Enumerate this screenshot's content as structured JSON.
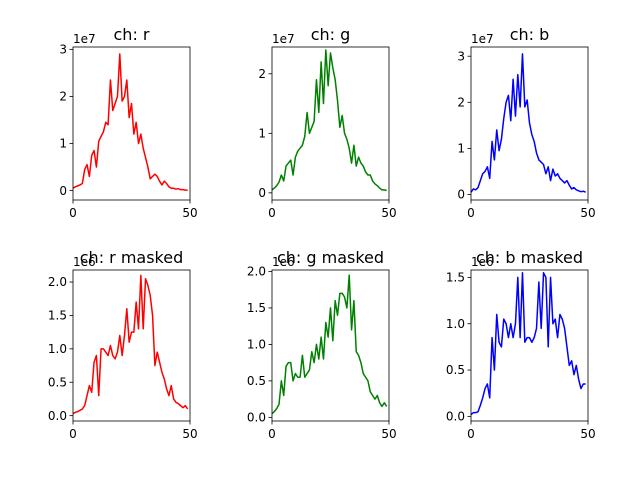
{
  "chart_data": [
    {
      "type": "line",
      "title": "ch: r",
      "color": "#ff0000",
      "offset_text": "1e7",
      "scale": 10000000,
      "xlim": [
        0,
        50
      ],
      "ylim": [
        -0.2,
        3.05
      ],
      "xticks": [
        0,
        50
      ],
      "yticks": [
        0,
        1,
        2,
        3
      ],
      "x": [
        0,
        1,
        2,
        3,
        4,
        5,
        6,
        7,
        8,
        9,
        10,
        11,
        12,
        13,
        14,
        15,
        16,
        17,
        18,
        19,
        20,
        21,
        22,
        23,
        24,
        25,
        26,
        27,
        28,
        29,
        30,
        31,
        32,
        33,
        34,
        35,
        36,
        37,
        38,
        39,
        40,
        41,
        42,
        43,
        44,
        45,
        46,
        47,
        48,
        49
      ],
      "values": [
        0.05,
        0.08,
        0.1,
        0.12,
        0.15,
        0.45,
        0.55,
        0.3,
        0.75,
        0.85,
        0.5,
        1.05,
        1.15,
        1.25,
        1.45,
        1.4,
        2.35,
        1.7,
        1.85,
        2.0,
        2.9,
        1.9,
        2.0,
        2.35,
        1.55,
        1.85,
        1.2,
        1.45,
        1.0,
        1.2,
        0.9,
        0.7,
        0.5,
        0.25,
        0.3,
        0.35,
        0.3,
        0.2,
        0.12,
        0.2,
        0.15,
        0.08,
        0.05,
        0.05,
        0.03,
        0.04,
        0.02,
        0.02,
        0.01,
        0.01
      ]
    },
    {
      "type": "line",
      "title": "ch: g",
      "color": "#008000",
      "offset_text": "1e7",
      "scale": 10000000,
      "xlim": [
        0,
        50
      ],
      "ylim": [
        -0.12,
        2.45
      ],
      "xticks": [
        0,
        50
      ],
      "yticks": [
        0,
        1,
        2
      ],
      "x": [
        0,
        1,
        2,
        3,
        4,
        5,
        6,
        7,
        8,
        9,
        10,
        11,
        12,
        13,
        14,
        15,
        16,
        17,
        18,
        19,
        20,
        21,
        22,
        23,
        24,
        25,
        26,
        27,
        28,
        29,
        30,
        31,
        32,
        33,
        34,
        35,
        36,
        37,
        38,
        39,
        40,
        41,
        42,
        43,
        44,
        45,
        46,
        47,
        48,
        49
      ],
      "values": [
        0.05,
        0.08,
        0.12,
        0.18,
        0.3,
        0.2,
        0.45,
        0.5,
        0.55,
        0.3,
        0.6,
        0.7,
        0.75,
        0.8,
        0.95,
        1.35,
        1.0,
        1.1,
        1.2,
        1.9,
        1.35,
        2.2,
        1.5,
        2.4,
        1.8,
        2.35,
        2.1,
        1.9,
        1.55,
        1.1,
        1.3,
        1.0,
        0.9,
        0.75,
        0.5,
        0.8,
        0.45,
        0.6,
        0.5,
        0.45,
        0.35,
        0.3,
        0.3,
        0.2,
        0.15,
        0.12,
        0.08,
        0.05,
        0.05,
        0.04
      ]
    },
    {
      "type": "line",
      "title": "ch: b",
      "color": "#0000ff",
      "offset_text": "1e7",
      "scale": 10000000,
      "xlim": [
        0,
        50
      ],
      "ylim": [
        -0.12,
        3.2
      ],
      "xticks": [
        0,
        50
      ],
      "yticks": [
        0,
        1,
        2,
        3
      ],
      "x": [
        0,
        1,
        2,
        3,
        4,
        5,
        6,
        7,
        8,
        9,
        10,
        11,
        12,
        13,
        14,
        15,
        16,
        17,
        18,
        19,
        20,
        21,
        22,
        23,
        24,
        25,
        26,
        27,
        28,
        29,
        30,
        31,
        32,
        33,
        34,
        35,
        36,
        37,
        38,
        39,
        40,
        41,
        42,
        43,
        44,
        45,
        46,
        47,
        48,
        49
      ],
      "values": [
        0.05,
        0.12,
        0.1,
        0.15,
        0.3,
        0.45,
        0.5,
        0.6,
        0.35,
        1.15,
        0.75,
        1.4,
        0.95,
        1.2,
        1.65,
        2.0,
        2.15,
        1.6,
        2.5,
        1.7,
        2.6,
        1.9,
        3.05,
        1.9,
        2.05,
        1.55,
        1.3,
        1.15,
        0.9,
        0.75,
        0.7,
        0.65,
        0.45,
        0.6,
        0.3,
        0.55,
        0.4,
        0.45,
        0.35,
        0.3,
        0.25,
        0.3,
        0.2,
        0.12,
        0.15,
        0.1,
        0.08,
        0.06,
        0.07,
        0.05
      ]
    },
    {
      "type": "line",
      "title": "ch: r masked",
      "color": "#ff0000",
      "offset_text": "1e6",
      "scale": 1000000,
      "xlim": [
        0,
        50
      ],
      "ylim": [
        -0.08,
        2.18
      ],
      "xticks": [
        0,
        50
      ],
      "yticks": [
        0.0,
        0.5,
        1.0,
        1.5,
        2.0
      ],
      "x": [
        0,
        1,
        2,
        3,
        4,
        5,
        6,
        7,
        8,
        9,
        10,
        11,
        12,
        13,
        14,
        15,
        16,
        17,
        18,
        19,
        20,
        21,
        22,
        23,
        24,
        25,
        26,
        27,
        28,
        29,
        30,
        31,
        32,
        33,
        34,
        35,
        36,
        37,
        38,
        39,
        40,
        41,
        42,
        43,
        44,
        45,
        46,
        47,
        48,
        49
      ],
      "values": [
        0.03,
        0.05,
        0.06,
        0.08,
        0.1,
        0.15,
        0.3,
        0.45,
        0.35,
        0.8,
        0.9,
        0.3,
        1.0,
        1.0,
        0.95,
        0.9,
        1.05,
        0.9,
        0.85,
        0.95,
        1.2,
        0.9,
        1.2,
        1.6,
        1.1,
        1.25,
        1.25,
        1.7,
        1.3,
        2.1,
        1.3,
        2.05,
        1.95,
        1.8,
        1.5,
        0.75,
        0.95,
        0.8,
        0.65,
        0.55,
        0.4,
        0.3,
        0.45,
        0.25,
        0.2,
        0.18,
        0.15,
        0.12,
        0.15,
        0.1
      ]
    },
    {
      "type": "line",
      "title": "ch: g masked",
      "color": "#008000",
      "offset_text": "1e6",
      "scale": 1000000,
      "xlim": [
        0,
        50
      ],
      "ylim": [
        -0.05,
        2.02
      ],
      "xticks": [
        0,
        50
      ],
      "yticks": [
        0.0,
        0.5,
        1.0,
        1.5,
        2.0
      ],
      "x": [
        0,
        1,
        2,
        3,
        4,
        5,
        6,
        7,
        8,
        9,
        10,
        11,
        12,
        13,
        14,
        15,
        16,
        17,
        18,
        19,
        20,
        21,
        22,
        23,
        24,
        25,
        26,
        27,
        28,
        29,
        30,
        31,
        32,
        33,
        34,
        35,
        36,
        37,
        38,
        39,
        40,
        41,
        42,
        43,
        44,
        45,
        46,
        47,
        48,
        49
      ],
      "values": [
        0.05,
        0.08,
        0.12,
        0.18,
        0.5,
        0.3,
        0.7,
        0.75,
        0.75,
        0.5,
        0.6,
        0.55,
        0.55,
        0.85,
        0.55,
        0.6,
        0.65,
        0.9,
        0.75,
        1.0,
        0.8,
        1.1,
        0.8,
        1.3,
        1.1,
        1.5,
        1.05,
        1.6,
        1.4,
        1.7,
        1.7,
        1.65,
        1.5,
        1.95,
        1.2,
        1.6,
        0.9,
        0.85,
        0.75,
        0.6,
        0.55,
        0.5,
        0.35,
        0.3,
        0.25,
        0.3,
        0.2,
        0.15,
        0.2,
        0.15
      ]
    },
    {
      "type": "line",
      "title": "ch: b masked",
      "color": "#0000ff",
      "offset_text": "1e6",
      "scale": 1000000,
      "xlim": [
        0,
        50
      ],
      "ylim": [
        -0.05,
        1.58
      ],
      "xticks": [
        0,
        50
      ],
      "yticks": [
        0.0,
        0.5,
        1.0,
        1.5
      ],
      "x": [
        0,
        1,
        2,
        3,
        4,
        5,
        6,
        7,
        8,
        9,
        10,
        11,
        12,
        13,
        14,
        15,
        16,
        17,
        18,
        19,
        20,
        21,
        22,
        23,
        24,
        25,
        26,
        27,
        28,
        29,
        30,
        31,
        32,
        33,
        34,
        35,
        36,
        37,
        38,
        39,
        40,
        41,
        42,
        43,
        44,
        45,
        46,
        47,
        48,
        49
      ],
      "values": [
        0.02,
        0.04,
        0.04,
        0.05,
        0.12,
        0.2,
        0.3,
        0.35,
        0.2,
        0.85,
        0.5,
        1.1,
        0.8,
        0.75,
        1.05,
        1.0,
        0.85,
        1.0,
        0.85,
        1.0,
        1.5,
        0.85,
        1.55,
        0.8,
        0.85,
        0.85,
        0.8,
        0.85,
        0.95,
        1.45,
        0.95,
        1.55,
        1.5,
        0.75,
        1.5,
        1.0,
        1.05,
        0.85,
        1.1,
        1.05,
        0.95,
        0.75,
        0.55,
        0.6,
        0.45,
        0.55,
        0.4,
        0.3,
        0.35,
        0.35
      ]
    }
  ]
}
